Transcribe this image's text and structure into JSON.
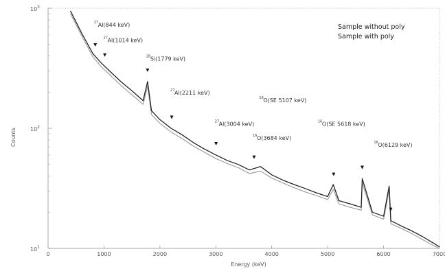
{
  "chart_data": {
    "type": "line",
    "xlabel": "Energy (keV)",
    "ylabel": "Counts",
    "xlim": [
      0,
      7000
    ],
    "ylim_log10": [
      1,
      3
    ],
    "x_ticks": [
      "0",
      "1000",
      "2000",
      "3000",
      "4000",
      "5000",
      "6000",
      "7000"
    ],
    "y_ticks": [
      {
        "base": "10",
        "exp": "3"
      },
      {
        "base": "10",
        "exp": "2"
      },
      {
        "base": "10",
        "exp": "1"
      }
    ],
    "legend": [
      "Sample without poly",
      "Sample with poly"
    ],
    "grid": false,
    "series": [
      {
        "name": "Sample without poly",
        "color": "#222222",
        "x": [
          400,
          600,
          800,
          950,
          1100,
          1300,
          1500,
          1700,
          1779,
          1850,
          2000,
          2200,
          2400,
          2600,
          2800,
          3000,
          3200,
          3400,
          3600,
          3800,
          4000,
          4200,
          4400,
          4600,
          4800,
          5000,
          5100,
          5200,
          5400,
          5600,
          5618,
          5800,
          6000,
          6100,
          6129,
          6300,
          6500,
          6700,
          6900,
          7000
        ],
        "y": [
          950,
          620,
          420,
          350,
          300,
          245,
          205,
          170,
          245,
          140,
          118,
          100,
          88,
          76,
          67,
          60,
          54,
          50,
          45,
          48,
          41,
          37,
          34,
          31.5,
          29,
          27,
          34,
          25,
          23.5,
          22,
          38,
          20,
          18.5,
          33,
          17,
          15.5,
          14,
          12.5,
          11,
          10.3
        ]
      },
      {
        "name": "Sample with poly",
        "color": "#999999",
        "x": [
          400,
          600,
          800,
          950,
          1100,
          1300,
          1500,
          1700,
          1779,
          1850,
          2000,
          2200,
          2400,
          2600,
          2800,
          3000,
          3200,
          3400,
          3600,
          3800,
          4000,
          4200,
          4400,
          4600,
          4800,
          5000,
          5100,
          5200,
          5400,
          5600,
          5618,
          5800,
          6000,
          6100,
          6129,
          6300,
          6500,
          6700,
          6900,
          7000
        ],
        "y": [
          900,
          590,
          395,
          325,
          280,
          228,
          190,
          158,
          225,
          130,
          110,
          93,
          82,
          71,
          63,
          56,
          51,
          47,
          42,
          44,
          38.5,
          35,
          32,
          29.5,
          27.5,
          25.5,
          31,
          23.5,
          22,
          20.8,
          35,
          19,
          17.5,
          30.5,
          16,
          14.8,
          13.3,
          11.8,
          10.5,
          10
        ]
      }
    ],
    "annotations": [
      {
        "sup": "27",
        "text": "Al(844 keV)",
        "x": 844,
        "y": 700
      },
      {
        "sup": "27",
        "text": "Al(1014 keV)",
        "x": 1014,
        "y": 520
      },
      {
        "sup": "28",
        "text": "Si(1779 keV)",
        "x": 1779,
        "y": 365
      },
      {
        "sup": "27",
        "text": "Al(2211 keV)",
        "x": 2211,
        "y": 190
      },
      {
        "sup": "27",
        "text": "Al(3004 keV)",
        "x": 3004,
        "y": 105
      },
      {
        "sup": "16",
        "text": "O(SE 5107 keV)",
        "x": 3800,
        "y": 165
      },
      {
        "sup": "16",
        "text": "O(3684 keV)",
        "x": 3684,
        "y": 80
      },
      {
        "sup": "16",
        "text": "O(SE 5618 keV)",
        "x": 4850,
        "y": 105
      },
      {
        "sup": "16",
        "text": "O(6129 keV)",
        "x": 5850,
        "y": 70
      }
    ],
    "peak_markers_x": [
      844,
      1014,
      1779,
      2211,
      3004,
      3684,
      5107,
      5618,
      6129
    ]
  }
}
